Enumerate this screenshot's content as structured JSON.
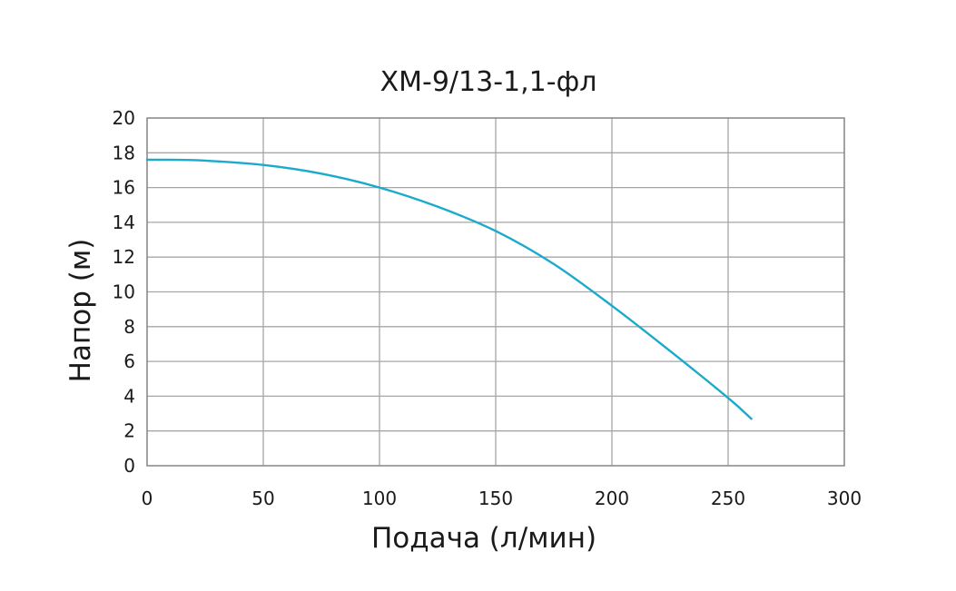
{
  "chart_data": {
    "type": "line",
    "title": "ХМ-9/13-1,1-фл",
    "xlabel": "Подача (л/мин)",
    "ylabel": "Напор (м)",
    "xlim": [
      0,
      300
    ],
    "ylim": [
      0,
      20
    ],
    "xticks": [
      0,
      50,
      100,
      150,
      200,
      250,
      300
    ],
    "yticks": [
      0,
      2,
      4,
      6,
      8,
      10,
      12,
      14,
      16,
      18,
      20
    ],
    "grid": true,
    "legend": "none",
    "series": [
      {
        "color": "#1aaacb",
        "x": [
          0,
          10,
          25,
          50,
          75,
          100,
          125,
          150,
          175,
          200,
          225,
          250,
          260
        ],
        "y": [
          17.6,
          17.6,
          17.55,
          17.3,
          16.8,
          16.0,
          14.9,
          13.5,
          11.6,
          9.2,
          6.6,
          3.9,
          2.7
        ]
      }
    ]
  }
}
